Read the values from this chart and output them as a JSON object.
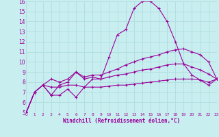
{
  "title": "",
  "xlabel": "Windchill (Refroidissement éolien,°C)",
  "background_color": "#c8eef0",
  "grid_color": "#b0dde0",
  "line_color": "#990099",
  "x_ticks": [
    0,
    1,
    2,
    3,
    4,
    5,
    6,
    7,
    8,
    9,
    10,
    11,
    12,
    13,
    14,
    15,
    16,
    17,
    18,
    19,
    20,
    21,
    22,
    23
  ],
  "y_ticks": [
    5,
    6,
    7,
    8,
    9,
    10,
    11,
    12,
    13,
    14,
    15,
    16
  ],
  "xlim": [
    0,
    23
  ],
  "ylim": [
    5,
    16
  ],
  "series": [
    {
      "x": [
        0,
        1,
        2,
        3,
        4,
        5,
        6,
        7,
        8,
        9,
        10,
        11,
        12,
        13,
        14,
        15,
        16,
        17,
        18,
        19,
        20,
        21,
        22,
        23
      ],
      "y": [
        5.0,
        7.0,
        7.7,
        6.7,
        7.7,
        8.0,
        9.0,
        8.3,
        8.5,
        8.3,
        10.5,
        12.7,
        13.2,
        15.3,
        16.0,
        16.0,
        15.3,
        14.0,
        12.0,
        9.8,
        8.7,
        8.2,
        7.7,
        8.3
      ]
    },
    {
      "x": [
        0,
        1,
        2,
        3,
        4,
        5,
        6,
        7,
        8,
        9,
        10,
        11,
        12,
        13,
        14,
        15,
        16,
        17,
        18,
        19,
        20,
        21,
        22,
        23
      ],
      "y": [
        5.0,
        7.0,
        7.7,
        8.3,
        8.0,
        8.3,
        9.0,
        8.5,
        8.7,
        8.7,
        9.0,
        9.3,
        9.7,
        10.0,
        10.3,
        10.5,
        10.7,
        11.0,
        11.2,
        11.3,
        11.0,
        10.7,
        10.0,
        8.3
      ]
    },
    {
      "x": [
        0,
        1,
        2,
        3,
        4,
        5,
        6,
        7,
        8,
        9,
        10,
        11,
        12,
        13,
        14,
        15,
        16,
        17,
        18,
        19,
        20,
        21,
        22,
        23
      ],
      "y": [
        5.0,
        7.0,
        7.7,
        6.7,
        6.7,
        7.3,
        6.5,
        7.5,
        8.3,
        8.3,
        8.5,
        8.7,
        8.8,
        9.0,
        9.2,
        9.3,
        9.5,
        9.7,
        9.8,
        9.8,
        9.5,
        9.2,
        8.8,
        8.3
      ]
    },
    {
      "x": [
        0,
        1,
        2,
        3,
        4,
        5,
        6,
        7,
        8,
        9,
        10,
        11,
        12,
        13,
        14,
        15,
        16,
        17,
        18,
        19,
        20,
        21,
        22,
        23
      ],
      "y": [
        5.0,
        7.0,
        7.7,
        7.5,
        7.5,
        7.7,
        7.7,
        7.5,
        7.5,
        7.5,
        7.6,
        7.7,
        7.7,
        7.8,
        7.9,
        8.0,
        8.1,
        8.2,
        8.3,
        8.3,
        8.3,
        8.2,
        8.0,
        8.3
      ]
    }
  ]
}
